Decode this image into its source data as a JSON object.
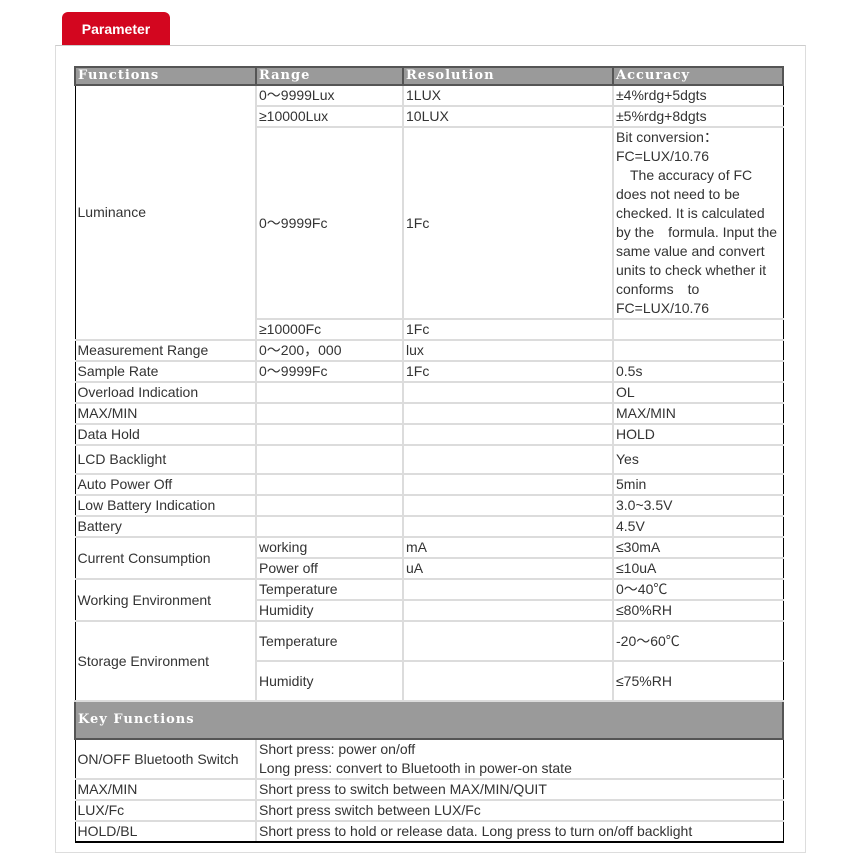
{
  "tab": "Parameter",
  "headers": [
    "Functions",
    "Range",
    "Resolution",
    "Accuracy"
  ],
  "lum": {
    "label": "Luminance",
    "r1": [
      "0～9999Lux",
      "1LUX",
      "±4%rdg+5dgts"
    ],
    "r2": [
      "≥10000Lux",
      "10LUX",
      "±5%rdg+8dgts"
    ],
    "r3": [
      "0～9999Fc",
      "1Fc"
    ],
    "note": [
      "Bit conversion：",
      "FC=LUX/10.76",
      "　The accuracy of FC does not need to be checked. It is calculated by the　formula. Input the same value and convert units to check whether it conforms　to FC=LUX/10.76"
    ],
    "r4": [
      "≥10000Fc",
      "1Fc",
      ""
    ]
  },
  "rows": [
    [
      "Measurement Range",
      "0～200，000",
      "lux",
      ""
    ],
    [
      "Sample Rate",
      "0～9999Fc",
      "1Fc",
      "0.5s"
    ],
    [
      "Overload Indication",
      "",
      "",
      "OL"
    ],
    [
      "MAX/MIN",
      "",
      "",
      "MAX/MIN"
    ],
    [
      "Data Hold",
      "",
      "",
      "HOLD"
    ],
    [
      "LCD Backlight",
      "",
      "",
      "Yes"
    ],
    [
      "Auto Power Off",
      "",
      "",
      "5min"
    ],
    [
      "Low Battery Indication",
      "",
      "",
      "3.0~3.5V"
    ],
    [
      "Battery",
      "",
      "",
      "4.5V"
    ]
  ],
  "current": {
    "label": "Current Consumption",
    "a": [
      "working",
      "mA",
      "≤30mA"
    ],
    "b": [
      "Power off",
      "uA",
      "≤10uA"
    ]
  },
  "working": {
    "label": "Working Environment",
    "a": [
      "Temperature",
      "",
      "0～40℃"
    ],
    "b": [
      "Humidity",
      "",
      "≤80%RH"
    ]
  },
  "storage": {
    "label": "Storage Environment",
    "a": [
      "Temperature",
      "",
      "-20～60℃"
    ],
    "b": [
      "Humidity",
      "",
      "≤75%RH"
    ]
  },
  "key": {
    "header": "Key Functions",
    "rows": [
      [
        "ON/OFF Bluetooth Switch",
        "Short press: power on/off",
        "Long press: convert to Bluetooth in power-on state"
      ],
      [
        "MAX/MIN",
        "Short press to switch between MAX/MIN/QUIT"
      ],
      [
        "LUX/Fc",
        "Short press switch between LUX/Fc"
      ],
      [
        "HOLD/BL",
        "Short press to hold or release data. Long press to turn on/off backlight"
      ]
    ]
  }
}
